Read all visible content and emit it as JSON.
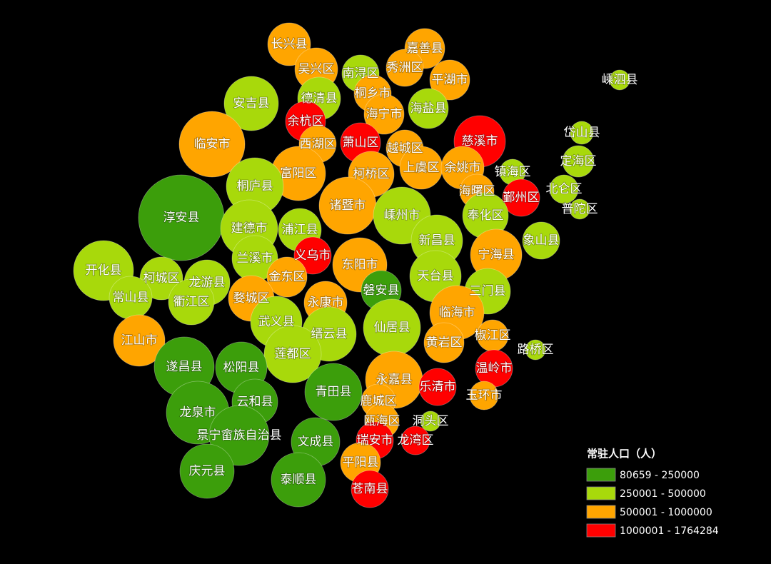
{
  "legend": {
    "title": "常驻人口（人）",
    "items": [
      {
        "label": "80659 - 250000",
        "color": "#3c9e0b"
      },
      {
        "label": "250001 - 500000",
        "color": "#a8d90b"
      },
      {
        "label": "500001 - 1000000",
        "color": "#ffa500"
      },
      {
        "label": "1000001 - 1764284",
        "color": "#ff0000"
      }
    ]
  },
  "regions": [
    {
      "label": "长兴县",
      "color": "#ffa500"
    },
    {
      "label": "嘉善县",
      "color": "#ffa500"
    },
    {
      "label": "吴兴区",
      "color": "#ffa500"
    },
    {
      "label": "南浔区",
      "color": "#a8d90b"
    },
    {
      "label": "秀洲区",
      "color": "#ffa500"
    },
    {
      "label": "平湖市",
      "color": "#ffa500"
    },
    {
      "label": "嵊泗县",
      "color": "#a8d90b"
    },
    {
      "label": "安吉县",
      "color": "#a8d90b"
    },
    {
      "label": "德清县",
      "color": "#a8d90b"
    },
    {
      "label": "桐乡市",
      "color": "#ffa500"
    },
    {
      "label": "海盐县",
      "color": "#a8d90b"
    },
    {
      "label": "余杭区",
      "color": "#ff0000"
    },
    {
      "label": "海宁市",
      "color": "#ffa500"
    },
    {
      "label": "慈溪市",
      "color": "#ff0000"
    },
    {
      "label": "岱山县",
      "color": "#a8d90b"
    },
    {
      "label": "临安市",
      "color": "#ffa500"
    },
    {
      "label": "西湖区",
      "color": "#ffa500"
    },
    {
      "label": "萧山区",
      "color": "#ff0000"
    },
    {
      "label": "越城区",
      "color": "#ffa500"
    },
    {
      "label": "定海区",
      "color": "#a8d90b"
    },
    {
      "label": "富阳区",
      "color": "#ffa500"
    },
    {
      "label": "柯桥区",
      "color": "#ffa500"
    },
    {
      "label": "上虞区",
      "color": "#ffa500"
    },
    {
      "label": "余姚市",
      "color": "#ffa500"
    },
    {
      "label": "镇海区",
      "color": "#a8d90b"
    },
    {
      "label": "桐庐县",
      "color": "#a8d90b"
    },
    {
      "label": "海曙区",
      "color": "#ffa500"
    },
    {
      "label": "鄞州区",
      "color": "#ff0000"
    },
    {
      "label": "北仑区",
      "color": "#a8d90b"
    },
    {
      "label": "普陀区",
      "color": "#a8d90b"
    },
    {
      "label": "淳安县",
      "color": "#3c9e0b"
    },
    {
      "label": "诸暨市",
      "color": "#ffa500"
    },
    {
      "label": "嵊州市",
      "color": "#a8d90b"
    },
    {
      "label": "奉化区",
      "color": "#a8d90b"
    },
    {
      "label": "建德市",
      "color": "#a8d90b"
    },
    {
      "label": "浦江县",
      "color": "#a8d90b"
    },
    {
      "label": "新昌县",
      "color": "#a8d90b"
    },
    {
      "label": "象山县",
      "color": "#a8d90b"
    },
    {
      "label": "兰溪市",
      "color": "#a8d90b"
    },
    {
      "label": "义乌市",
      "color": "#ff0000"
    },
    {
      "label": "宁海县",
      "color": "#ffa500"
    },
    {
      "label": "开化县",
      "color": "#a8d90b"
    },
    {
      "label": "东阳市",
      "color": "#ffa500"
    },
    {
      "label": "金东区",
      "color": "#ffa500"
    },
    {
      "label": "柯城区",
      "color": "#a8d90b"
    },
    {
      "label": "龙游县",
      "color": "#a8d90b"
    },
    {
      "label": "天台县",
      "color": "#a8d90b"
    },
    {
      "label": "磐安县",
      "color": "#3c9e0b"
    },
    {
      "label": "常山县",
      "color": "#a8d90b"
    },
    {
      "label": "衢江区",
      "color": "#a8d90b"
    },
    {
      "label": "婺城区",
      "color": "#ffa500"
    },
    {
      "label": "三门县",
      "color": "#a8d90b"
    },
    {
      "label": "永康市",
      "color": "#ffa500"
    },
    {
      "label": "临海市",
      "color": "#ffa500"
    },
    {
      "label": "武义县",
      "color": "#a8d90b"
    },
    {
      "label": "仙居县",
      "color": "#a8d90b"
    },
    {
      "label": "缙云县",
      "color": "#a8d90b"
    },
    {
      "label": "椒江区",
      "color": "#ffa500"
    },
    {
      "label": "江山市",
      "color": "#ffa500"
    },
    {
      "label": "黄岩区",
      "color": "#ffa500"
    },
    {
      "label": "路桥区",
      "color": "#a8d90b"
    },
    {
      "label": "莲都区",
      "color": "#a8d90b"
    },
    {
      "label": "遂昌县",
      "color": "#3c9e0b"
    },
    {
      "label": "松阳县",
      "color": "#3c9e0b"
    },
    {
      "label": "温岭市",
      "color": "#ff0000"
    },
    {
      "label": "永嘉县",
      "color": "#ffa500"
    },
    {
      "label": "乐清市",
      "color": "#ff0000"
    },
    {
      "label": "青田县",
      "color": "#3c9e0b"
    },
    {
      "label": "玉环市",
      "color": "#ffa500"
    },
    {
      "label": "鹿城区",
      "color": "#ffa500"
    },
    {
      "label": "云和县",
      "color": "#3c9e0b"
    },
    {
      "label": "龙泉市",
      "color": "#3c9e0b"
    },
    {
      "label": "瓯海区",
      "color": "#ffa500"
    },
    {
      "label": "洞头区",
      "color": "#a8d90b"
    },
    {
      "label": "景宁畲族自治县",
      "color": "#3c9e0b"
    },
    {
      "label": "文成县",
      "color": "#3c9e0b"
    },
    {
      "label": "瑞安市",
      "color": "#ff0000"
    },
    {
      "label": "龙湾区",
      "color": "#ff0000"
    },
    {
      "label": "平阳县",
      "color": "#ffa500"
    },
    {
      "label": "庆元县",
      "color": "#3c9e0b"
    },
    {
      "label": "泰顺县",
      "color": "#3c9e0b"
    },
    {
      "label": "苍南县",
      "color": "#ff0000"
    }
  ]
}
